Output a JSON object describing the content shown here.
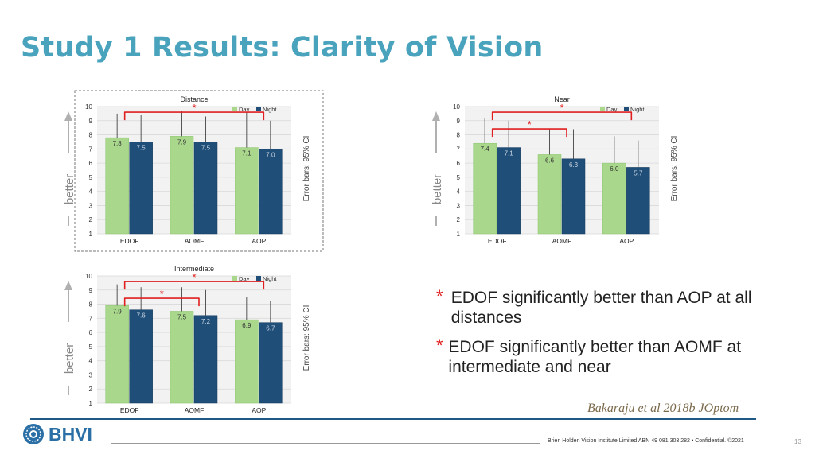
{
  "title": "Study 1 Results: Clarity of Vision",
  "side_label": "better",
  "error_label": "Error bars: 95% CI",
  "legend": [
    "Day",
    "Night"
  ],
  "colors": {
    "day": "#a9d88d",
    "night": "#1f4e79",
    "sig": "#e02020",
    "title": "#4aa3bd"
  },
  "chart_data": [
    {
      "type": "bar",
      "title": "Distance",
      "categories": [
        "EDOF",
        "AOMF",
        "AOP"
      ],
      "series": [
        {
          "name": "Day",
          "values": [
            7.8,
            7.9,
            7.1
          ],
          "err_high": [
            9.5,
            9.7,
            9.6
          ]
        },
        {
          "name": "Night",
          "values": [
            7.5,
            7.5,
            7.0
          ],
          "err_high": [
            9.4,
            9.3,
            9.0
          ]
        }
      ],
      "ylim": [
        1,
        10
      ],
      "yticks": [
        1,
        2,
        3,
        4,
        5,
        6,
        7,
        8,
        9,
        10
      ],
      "significance": [
        {
          "from": 0,
          "to": 2,
          "level": 0
        }
      ],
      "dashed_border": true
    },
    {
      "type": "bar",
      "title": "Near",
      "categories": [
        "EDOF",
        "AOMF",
        "AOP"
      ],
      "series": [
        {
          "name": "Day",
          "values": [
            7.4,
            6.6,
            6.0
          ],
          "err_high": [
            9.2,
            8.4,
            7.9
          ]
        },
        {
          "name": "Night",
          "values": [
            7.1,
            6.3,
            5.7
          ],
          "err_high": [
            9.0,
            8.4,
            7.6
          ]
        }
      ],
      "ylim": [
        1,
        10
      ],
      "yticks": [
        1,
        2,
        3,
        4,
        5,
        6,
        7,
        8,
        9,
        10
      ],
      "significance": [
        {
          "from": 0,
          "to": 1,
          "level": 1
        },
        {
          "from": 0,
          "to": 2,
          "level": 0
        }
      ],
      "dashed_border": false
    },
    {
      "type": "bar",
      "title": "Intermediate",
      "categories": [
        "EDOF",
        "AOMF",
        "AOP"
      ],
      "series": [
        {
          "name": "Day",
          "values": [
            7.9,
            7.5,
            6.9
          ],
          "err_high": [
            9.4,
            9.2,
            8.5
          ]
        },
        {
          "name": "Night",
          "values": [
            7.6,
            7.2,
            6.7
          ],
          "err_high": [
            9.2,
            9.0,
            8.2
          ]
        }
      ],
      "ylim": [
        1,
        10
      ],
      "yticks": [
        1,
        2,
        3,
        4,
        5,
        6,
        7,
        8,
        9,
        10
      ],
      "significance": [
        {
          "from": 0,
          "to": 1,
          "level": 1
        },
        {
          "from": 0,
          "to": 2,
          "level": 0
        }
      ],
      "dashed_border": false
    }
  ],
  "bullets": [
    {
      "star": "*",
      "text": "EDOF significantly better than AOP at all distances"
    },
    {
      "star": "*",
      "text": "EDOF significantly better than AOMF at intermediate and near"
    }
  ],
  "citation": "Bakaraju et al 2018b JOptom",
  "logo_text": "BHVI",
  "footer": "Brien Holden Vision Institute Limited ABN 49 081 303 282 • Confidential. ©2021",
  "page_number": "13"
}
